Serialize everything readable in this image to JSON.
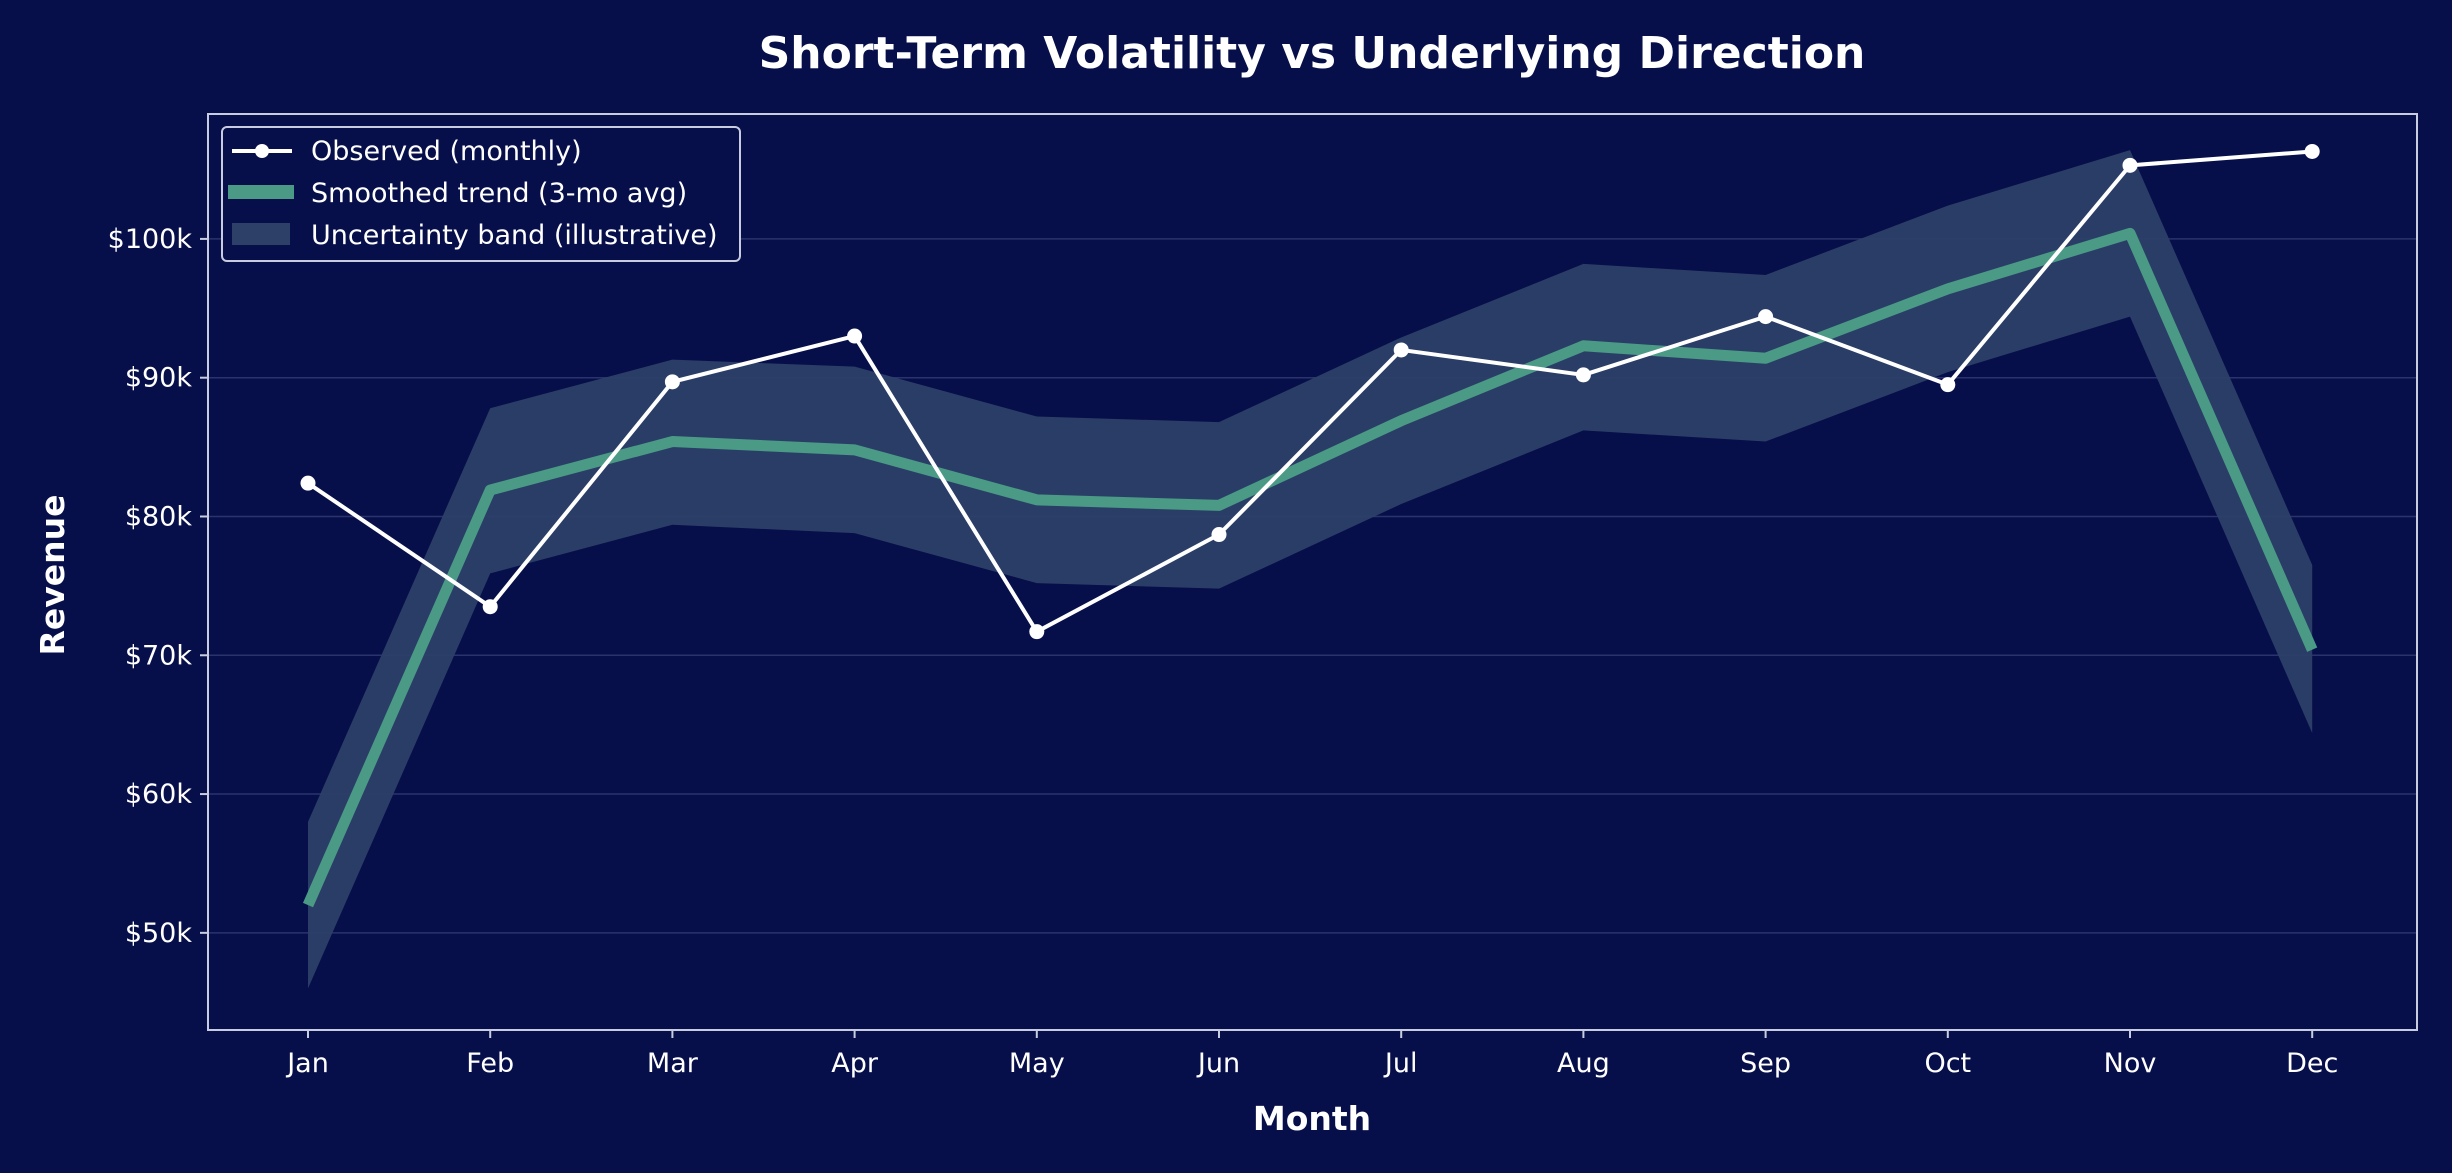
{
  "chart_data": {
    "type": "line",
    "title": "Short-Term Volatility vs Underlying Direction",
    "xlabel": "Month",
    "ylabel": "Revenue",
    "categories": [
      "Jan",
      "Feb",
      "Mar",
      "Apr",
      "May",
      "Jun",
      "Jul",
      "Aug",
      "Sep",
      "Oct",
      "Nov",
      "Dec"
    ],
    "ylim": [
      43000,
      109000
    ],
    "yticks": [
      50000,
      60000,
      70000,
      80000,
      90000,
      100000
    ],
    "ytick_labels": [
      "$50k",
      "$60k",
      "$70k",
      "$80k",
      "$90k",
      "$100k"
    ],
    "grid": "horizontal",
    "legend_position": "top-left",
    "series": [
      {
        "name": "Observed (monthly)",
        "kind": "line-markers",
        "values": [
          82400,
          73500,
          89700,
          93000,
          71700,
          78700,
          92000,
          90200,
          94400,
          89500,
          105300,
          106300
        ]
      },
      {
        "name": "Smoothed trend (3-mo avg)",
        "kind": "thick-line",
        "values": [
          52000,
          81900,
          85400,
          84800,
          81200,
          80800,
          86900,
          92300,
          91400,
          96400,
          100400,
          70400
        ]
      },
      {
        "name": "Uncertainty band (illustrative)",
        "kind": "band",
        "upper": [
          58000,
          87800,
          91300,
          90800,
          87200,
          86800,
          92900,
          98200,
          97400,
          102400,
          106400,
          76500
        ],
        "lower": [
          46000,
          75900,
          79400,
          78800,
          75200,
          74800,
          80900,
          86200,
          85400,
          90400,
          94400,
          64400
        ]
      }
    ],
    "colors": {
      "background": "#070f4a",
      "observed": "#ffffff",
      "trend": "#4a9a86",
      "band": "#2c4068",
      "axes": "#c8cce0",
      "grid": "#2a336b",
      "legend_border": "#c8cce0"
    }
  }
}
